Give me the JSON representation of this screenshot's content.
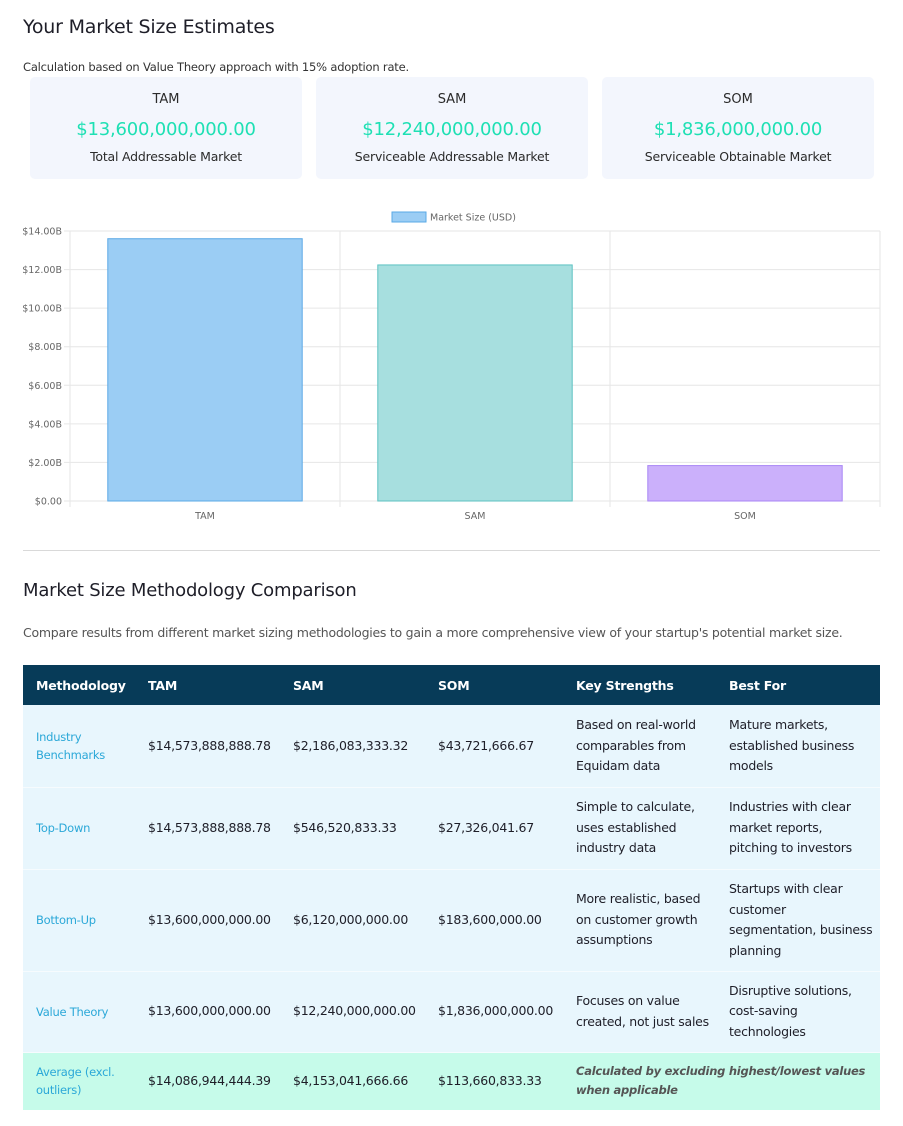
{
  "estimates": {
    "title": "Your Market Size Estimates",
    "subtitle": "Calculation based on Value Theory approach with 15% adoption rate.",
    "cards": [
      {
        "label": "TAM",
        "value": "$13,600,000,000.00",
        "desc": "Total Addressable Market"
      },
      {
        "label": "SAM",
        "value": "$12,240,000,000.00",
        "desc": "Serviceable Addressable Market"
      },
      {
        "label": "SOM",
        "value": "$1,836,000,000.00",
        "desc": "Serviceable Obtainable Market"
      }
    ],
    "accent_color": "#1ee0b4"
  },
  "chart_data": {
    "type": "bar",
    "categories": [
      "TAM",
      "SAM",
      "SOM"
    ],
    "series": [
      {
        "name": "Market Size (USD)",
        "values": [
          13600000000,
          12240000000,
          1836000000
        ]
      }
    ],
    "ylim": [
      0,
      14000000000
    ],
    "yticks": [
      "$0.00",
      "$2.00B",
      "$4.00B",
      "$6.00B",
      "$8.00B",
      "$10.00B",
      "$12.00B",
      "$14.00B"
    ],
    "bar_colors": [
      "#9bcdf4",
      "#a7dfdf",
      "#cbb0fb"
    ],
    "bar_borders": [
      "#5aa9e6",
      "#5cc2c2",
      "#a985f5"
    ],
    "grid": true,
    "legend": "top-center"
  },
  "comparison": {
    "title": "Market Size Methodology Comparison",
    "subtitle": "Compare results from different market sizing methodologies to gain a more comprehensive view of your startup's potential market size.",
    "headers": [
      "Methodology",
      "TAM",
      "SAM",
      "SOM",
      "Key Strengths",
      "Best For"
    ],
    "rows": [
      {
        "method": "Industry Benchmarks",
        "tam": "$14,573,888,888.78",
        "sam": "$2,186,083,333.32",
        "som": "$43,721,666.67",
        "strengths": "Based on real-world comparables from Equidam data",
        "best": "Mature markets, established business models"
      },
      {
        "method": "Top-Down",
        "tam": "$14,573,888,888.78",
        "sam": "$546,520,833.33",
        "som": "$27,326,041.67",
        "strengths": "Simple to calculate, uses established industry data",
        "best": "Industries with clear market reports, pitching to investors"
      },
      {
        "method": "Bottom-Up",
        "tam": "$13,600,000,000.00",
        "sam": "$6,120,000,000.00",
        "som": "$183,600,000.00",
        "strengths": "More realistic, based on customer growth assumptions",
        "best": "Startups with clear customer segmentation, business planning"
      },
      {
        "method": "Value Theory",
        "tam": "$13,600,000,000.00",
        "sam": "$12,240,000,000.00",
        "som": "$1,836,000,000.00",
        "strengths": "Focuses on value created, not just sales",
        "best": "Disruptive solutions, cost-saving technologies"
      }
    ],
    "average": {
      "method": "Average (excl. outliers)",
      "tam": "$14,086,944,444.39",
      "sam": "$4,153,041,666.66",
      "som": "$113,660,833.33",
      "note": "Calculated by excluding highest/lowest values when applicable"
    },
    "header_bg": "#073b58",
    "row_bg": "#e8f6fd",
    "avg_bg": "#c6fbea"
  }
}
